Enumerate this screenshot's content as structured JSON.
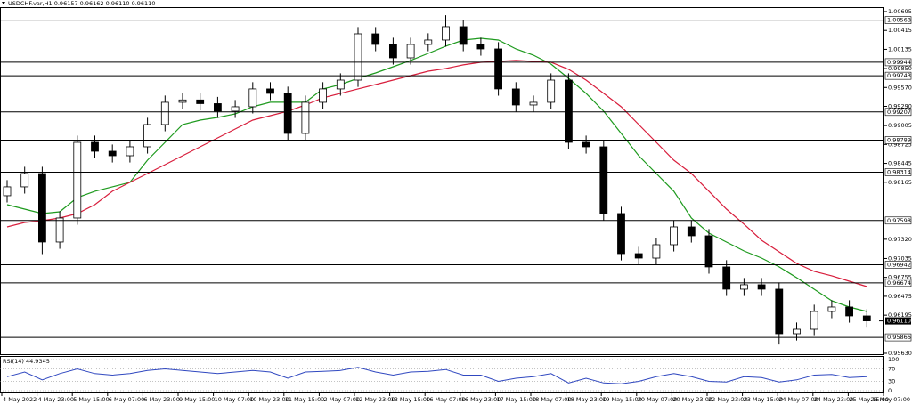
{
  "chart_data": {
    "type": "candlestick",
    "title": "USDCHF.var,H1  0.96157 0.96162 0.96110 0.96110",
    "open": [
      0.97965,
      0.98097,
      0.98294,
      0.97279,
      0.97635,
      0.98756,
      0.98624,
      0.98558,
      0.9869,
      0.9902,
      0.9935,
      0.99385,
      0.9933,
      0.99218,
      0.99284,
      0.99548,
      0.99482,
      0.98888,
      0.9935,
      0.99548,
      0.99679,
      1.00365,
      1.00207,
      1.00009,
      1.00207,
      1.00273,
      1.00471,
      1.00207,
      1.00141,
      0.99548,
      0.9931,
      0.9935,
      0.99679,
      0.98756,
      0.9869,
      0.97701,
      0.97107,
      0.97041,
      0.97239,
      0.97503,
      0.97371,
      0.9691,
      0.9658,
      0.96646,
      0.9658,
      0.9592,
      0.95986,
      0.9625,
      0.96316,
      0.96184
    ],
    "high": [
      0.98197,
      0.98394,
      0.98394,
      0.97735,
      0.98856,
      0.98856,
      0.98724,
      0.9879,
      0.9912,
      0.9945,
      0.99485,
      0.99485,
      0.9943,
      0.99384,
      0.99648,
      0.99648,
      0.99582,
      0.9945,
      0.99648,
      0.99779,
      1.00465,
      1.00465,
      1.00307,
      1.00307,
      1.00373,
      1.0064,
      1.00571,
      1.00307,
      1.00241,
      0.99648,
      0.9945,
      0.99779,
      0.99779,
      0.98856,
      0.9879,
      0.97801,
      0.97207,
      0.97339,
      0.97603,
      0.97603,
      0.97471,
      0.9701,
      0.96746,
      0.96746,
      0.9668,
      0.96086,
      0.9635,
      0.96416,
      0.96416,
      0.96284
    ],
    "low": [
      0.97865,
      0.97997,
      0.971,
      0.97179,
      0.97535,
      0.98524,
      0.98458,
      0.98458,
      0.9859,
      0.9892,
      0.9925,
      0.9923,
      0.99118,
      0.99118,
      0.99184,
      0.99382,
      0.98788,
      0.98788,
      0.9925,
      0.99448,
      0.99579,
      1.00107,
      0.99909,
      0.99909,
      1.00107,
      1.00173,
      1.00107,
      1.00041,
      0.99448,
      0.9921,
      0.9921,
      0.9925,
      0.98656,
      0.9859,
      0.97601,
      0.97007,
      0.96941,
      0.96941,
      0.97139,
      0.97271,
      0.9681,
      0.9648,
      0.9648,
      0.9648,
      0.9576,
      0.9582,
      0.95886,
      0.9615,
      0.96084,
      0.9601
    ],
    "close": [
      0.98097,
      0.98294,
      0.97279,
      0.97635,
      0.98756,
      0.98624,
      0.98558,
      0.9869,
      0.9902,
      0.9935,
      0.99385,
      0.9933,
      0.99218,
      0.99284,
      0.99548,
      0.99482,
      0.98888,
      0.9935,
      0.99548,
      0.99679,
      1.00365,
      1.00207,
      1.00009,
      1.00207,
      1.00273,
      1.00471,
      1.00207,
      1.00141,
      0.99548,
      0.9931,
      0.9935,
      0.99679,
      0.98756,
      0.9869,
      0.97701,
      0.97107,
      0.97041,
      0.97239,
      0.97503,
      0.97371,
      0.9691,
      0.9658,
      0.96646,
      0.9658,
      0.9592,
      0.95986,
      0.9625,
      0.96316,
      0.96184,
      0.9611
    ],
    "series": [
      {
        "color": "#1e9a1e",
        "values": [
          0.97833,
          0.97767,
          0.97701,
          0.97727,
          0.97938,
          0.98031,
          0.98097,
          0.98163,
          0.98492,
          0.98756,
          0.9902,
          0.99086,
          0.99125,
          0.99178,
          0.99284,
          0.9935,
          0.9935,
          0.9935,
          0.99548,
          0.99613,
          0.99706,
          0.99785,
          0.99877,
          0.9997,
          1.00075,
          1.00181,
          1.00273,
          1.00299,
          1.00273,
          1.00141,
          1.00049,
          0.99917,
          0.99706,
          0.99482,
          0.99218,
          0.98888,
          0.98558,
          0.98294,
          0.98031,
          0.97635,
          0.97411,
          0.97279,
          0.97147,
          0.97041,
          0.9691,
          0.96751,
          0.9658,
          0.96408,
          0.96316,
          0.9625
        ]
      },
      {
        "color": "#d81e3c",
        "values": [
          0.97503,
          0.97569,
          0.97595,
          0.97635,
          0.97701,
          0.97833,
          0.98031,
          0.98163,
          0.98294,
          0.98426,
          0.98558,
          0.9869,
          0.98822,
          0.98954,
          0.99086,
          0.99152,
          0.99218,
          0.9931,
          0.99416,
          0.99482,
          0.99548,
          0.99613,
          0.99679,
          0.99745,
          0.99811,
          0.99851,
          0.99904,
          0.99943,
          0.99956,
          0.9997,
          0.99956,
          0.99943,
          0.99838,
          0.99679,
          0.99482,
          0.99284,
          0.9902,
          0.98756,
          0.98492,
          0.98294,
          0.98031,
          0.97767,
          0.97543,
          0.97305,
          0.97134,
          0.96962,
          0.96844,
          0.96778,
          0.96698,
          0.96619
        ]
      }
    ],
    "ylim": [
      0.95577,
      1.00787
    ],
    "yticks": [
      1.00695,
      1.00415,
      1.00135,
      {
        "value": 0.9985,
        "label": "0.99850"
      },
      {
        "value": 0.9957,
        "label": "0.99570"
      },
      {
        "value": 0.9929,
        "label": "0.99290"
      },
      0.99005,
      0.98725,
      0.98445,
      0.98165,
      {
        "value": 0.9732,
        "label": "0.97320"
      },
      0.97035,
      0.96755,
      0.96475,
      0.96195,
      {
        "value": 0.9563,
        "label": "0.95630"
      }
    ],
    "levels": [
      1.00568,
      0.99944,
      0.99743,
      0.99207,
      0.98789,
      0.98314,
      0.97598,
      0.96942,
      0.96674,
      0.95866
    ],
    "last_price": {
      "value": 0.9611,
      "label": "0.96110"
    },
    "x_labels": [
      "4 May 2022",
      "4 May 23:00",
      "5 May 15:00",
      "6 May 07:00",
      "6 May 23:00",
      "9 May 15:00",
      "10 May 07:00",
      "10 May 23:00",
      "11 May 15:00",
      "12 May 07:00",
      "12 May 23:00",
      "13 May 15:00",
      "16 May 07:00",
      "16 May 23:00",
      "17 May 15:00",
      "18 May 07:00",
      "18 May 23:00",
      "19 May 15:00",
      "20 May 07:00",
      "20 May 23:00",
      "22 May 23:00",
      "23 May 15:00",
      "24 May 07:00",
      "24 May 23:00",
      "25 May 15:00",
      "26 May 07:00"
    ],
    "rsi": {
      "title": "RSI(14) 44.9345",
      "color": "#3048c0",
      "ylim": [
        0,
        100
      ],
      "yticks": [
        100,
        70,
        30,
        0
      ],
      "values": [
        45,
        60,
        35,
        55,
        70,
        55,
        50,
        55,
        65,
        70,
        65,
        60,
        55,
        60,
        65,
        60,
        40,
        60,
        62,
        65,
        75,
        60,
        50,
        60,
        62,
        68,
        50,
        50,
        30,
        40,
        45,
        55,
        25,
        40,
        25,
        22,
        30,
        45,
        55,
        45,
        30,
        28,
        45,
        42,
        28,
        35,
        50,
        52,
        42,
        44.9345
      ]
    }
  }
}
